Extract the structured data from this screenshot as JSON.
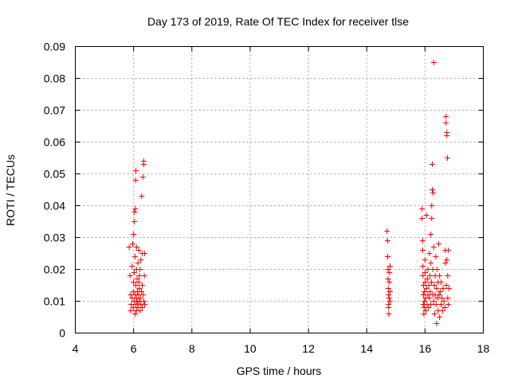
{
  "chart_data": {
    "type": "scatter",
    "title": "Day 173 of 2019, Rate Of TEC Index for receiver tlse",
    "xlabel": "GPS time / hours",
    "ylabel": "ROTI / TECUs",
    "xlim": [
      4,
      18
    ],
    "ylim": [
      0,
      0.09
    ],
    "xticks": [
      4,
      6,
      8,
      10,
      12,
      14,
      16,
      18
    ],
    "yticks": [
      0,
      0.01,
      0.02,
      0.03,
      0.04,
      0.05,
      0.06,
      0.07,
      0.08,
      0.09
    ],
    "xtick_labels": [
      "4",
      "6",
      "8",
      "10",
      "12",
      "14",
      "16",
      "18"
    ],
    "ytick_labels": [
      "0",
      "0.01",
      "0.02",
      "0.03",
      "0.04",
      "0.05",
      "0.06",
      "0.07",
      "0.08",
      "0.09"
    ],
    "grid": true,
    "marker": "+",
    "color": "#ff0000",
    "series": [
      {
        "name": "ROTI",
        "points": [
          [
            5.85,
            0.027
          ],
          [
            5.88,
            0.018
          ],
          [
            5.9,
            0.012
          ],
          [
            5.9,
            0.007
          ],
          [
            5.92,
            0.009
          ],
          [
            5.95,
            0.011
          ],
          [
            5.95,
            0.021
          ],
          [
            5.97,
            0.028
          ],
          [
            6.0,
            0.008
          ],
          [
            6.0,
            0.013
          ],
          [
            6.0,
            0.016
          ],
          [
            6.0,
            0.031
          ],
          [
            6.02,
            0.01
          ],
          [
            6.02,
            0.019
          ],
          [
            6.03,
            0.035
          ],
          [
            6.03,
            0.038
          ],
          [
            6.05,
            0.006
          ],
          [
            6.05,
            0.012
          ],
          [
            6.05,
            0.024
          ],
          [
            6.06,
            0.039
          ],
          [
            6.07,
            0.048
          ],
          [
            6.08,
            0.051
          ],
          [
            6.08,
            0.009
          ],
          [
            6.08,
            0.015
          ],
          [
            6.1,
            0.007
          ],
          [
            6.1,
            0.011
          ],
          [
            6.1,
            0.02
          ],
          [
            6.1,
            0.027
          ],
          [
            6.12,
            0.01
          ],
          [
            6.12,
            0.017
          ],
          [
            6.13,
            0.013
          ],
          [
            6.15,
            0.009
          ],
          [
            6.15,
            0.022
          ],
          [
            6.15,
            0.008
          ],
          [
            6.17,
            0.012
          ],
          [
            6.18,
            0.016
          ],
          [
            6.18,
            0.026
          ],
          [
            6.2,
            0.01
          ],
          [
            6.2,
            0.014
          ],
          [
            6.2,
            0.018
          ],
          [
            6.22,
            0.007
          ],
          [
            6.22,
            0.02
          ],
          [
            6.23,
            0.011
          ],
          [
            6.25,
            0.009
          ],
          [
            6.25,
            0.023
          ],
          [
            6.27,
            0.013
          ],
          [
            6.28,
            0.043
          ],
          [
            6.3,
            0.008
          ],
          [
            6.3,
            0.015
          ],
          [
            6.3,
            0.025
          ],
          [
            6.32,
            0.049
          ],
          [
            6.33,
            0.012
          ],
          [
            6.35,
            0.054
          ],
          [
            6.35,
            0.053
          ],
          [
            6.35,
            0.01
          ],
          [
            6.37,
            0.018
          ],
          [
            6.38,
            0.025
          ],
          [
            6.38,
            0.009
          ],
          [
            14.7,
            0.032
          ],
          [
            14.72,
            0.029
          ],
          [
            14.72,
            0.024
          ],
          [
            14.73,
            0.02
          ],
          [
            14.73,
            0.017
          ],
          [
            14.74,
            0.014
          ],
          [
            14.75,
            0.012
          ],
          [
            14.75,
            0.009
          ],
          [
            14.75,
            0.008
          ],
          [
            14.76,
            0.006
          ],
          [
            14.77,
            0.011
          ],
          [
            14.78,
            0.016
          ],
          [
            14.78,
            0.019
          ],
          [
            14.8,
            0.021
          ],
          [
            14.8,
            0.013
          ],
          [
            14.8,
            0.01
          ],
          [
            15.9,
            0.039
          ],
          [
            15.9,
            0.036
          ],
          [
            15.92,
            0.029
          ],
          [
            15.92,
            0.026
          ],
          [
            15.93,
            0.021
          ],
          [
            15.93,
            0.018
          ],
          [
            15.95,
            0.015
          ],
          [
            15.95,
            0.012
          ],
          [
            15.95,
            0.009
          ],
          [
            15.96,
            0.006
          ],
          [
            15.97,
            0.008
          ],
          [
            15.98,
            0.01
          ],
          [
            15.98,
            0.013
          ],
          [
            16.0,
            0.016
          ],
          [
            16.0,
            0.019
          ],
          [
            16.0,
            0.023
          ],
          [
            16.02,
            0.011
          ],
          [
            16.03,
            0.007
          ],
          [
            16.05,
            0.014
          ],
          [
            16.05,
            0.037
          ],
          [
            16.07,
            0.009
          ],
          [
            16.08,
            0.017
          ],
          [
            16.1,
            0.012
          ],
          [
            16.1,
            0.02
          ],
          [
            16.12,
            0.008
          ],
          [
            16.13,
            0.015
          ],
          [
            16.15,
            0.011
          ],
          [
            16.15,
            0.025
          ],
          [
            16.17,
            0.018
          ],
          [
            16.18,
            0.013
          ],
          [
            16.2,
            0.009
          ],
          [
            16.2,
            0.022
          ],
          [
            16.2,
            0.031
          ],
          [
            16.22,
            0.016
          ],
          [
            16.23,
            0.036
          ],
          [
            16.23,
            0.04
          ],
          [
            16.25,
            0.045
          ],
          [
            16.25,
            0.053
          ],
          [
            16.27,
            0.012
          ],
          [
            16.27,
            0.02
          ],
          [
            16.28,
            0.044
          ],
          [
            16.3,
            0.085
          ],
          [
            16.3,
            0.01
          ],
          [
            16.3,
            0.027
          ],
          [
            16.32,
            0.015
          ],
          [
            16.33,
            0.006
          ],
          [
            16.35,
            0.012
          ],
          [
            16.35,
            0.018
          ],
          [
            16.37,
            0.024
          ],
          [
            16.38,
            0.009
          ],
          [
            16.4,
            0.003
          ],
          [
            16.4,
            0.014
          ],
          [
            16.42,
            0.02
          ],
          [
            16.43,
            0.011
          ],
          [
            16.45,
            0.007
          ],
          [
            16.45,
            0.016
          ],
          [
            16.47,
            0.028
          ],
          [
            16.48,
            0.012
          ],
          [
            16.5,
            0.005
          ],
          [
            16.5,
            0.018
          ],
          [
            16.52,
            0.013
          ],
          [
            16.55,
            0.009
          ],
          [
            16.55,
            0.016
          ],
          [
            16.58,
            0.011
          ],
          [
            16.6,
            0.007
          ],
          [
            16.62,
            0.014
          ],
          [
            16.65,
            0.01
          ],
          [
            16.68,
            0.008
          ],
          [
            16.7,
            0.022
          ],
          [
            16.7,
            0.026
          ],
          [
            16.72,
            0.066
          ],
          [
            16.72,
            0.068
          ],
          [
            16.73,
            0.015
          ],
          [
            16.75,
            0.063
          ],
          [
            16.75,
            0.062
          ],
          [
            16.75,
            0.023
          ],
          [
            16.77,
            0.055
          ],
          [
            16.78,
            0.011
          ],
          [
            16.78,
            0.018
          ],
          [
            16.8,
            0.026
          ],
          [
            16.8,
            0.009
          ],
          [
            16.82,
            0.014
          ]
        ]
      }
    ]
  }
}
